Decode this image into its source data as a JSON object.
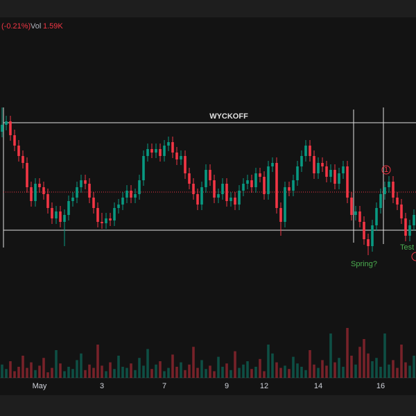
{
  "header": {
    "change": "(-0.21%)",
    "vol_label": "Vol",
    "vol_value": "1.59K"
  },
  "chart_data": {
    "type": "candlestick",
    "categories": [
      null,
      null,
      null,
      null,
      null,
      null,
      null,
      null,
      null,
      "May",
      null,
      null,
      null,
      null,
      null,
      null,
      null,
      null,
      null,
      null,
      null,
      null,
      null,
      null,
      "3",
      null,
      null,
      null,
      null,
      null,
      null,
      null,
      null,
      null,
      null,
      null,
      null,
      null,
      null,
      "7",
      null,
      null,
      null,
      null,
      null,
      null,
      null,
      null,
      null,
      null,
      null,
      null,
      null,
      null,
      "9",
      null,
      null,
      null,
      null,
      null,
      null,
      null,
      null,
      "12",
      null,
      null,
      null,
      null,
      null,
      null,
      null,
      null,
      null,
      null,
      null,
      null,
      "14",
      null,
      null,
      null,
      null,
      null,
      null,
      null,
      null,
      null,
      null,
      null,
      null,
      null,
      null,
      "16",
      null,
      null,
      null,
      null,
      null,
      null,
      null,
      null
    ],
    "open": [
      410,
      420,
      425,
      405,
      390,
      375,
      365,
      330,
      310,
      335,
      330,
      320,
      300,
      285,
      295,
      280,
      290,
      310,
      315,
      330,
      340,
      335,
      315,
      300,
      280,
      278,
      285,
      282,
      300,
      305,
      315,
      325,
      315,
      320,
      340,
      375,
      385,
      380,
      385,
      375,
      390,
      395,
      380,
      370,
      375,
      350,
      335,
      320,
      305,
      330,
      355,
      340,
      315,
      320,
      335,
      310,
      315,
      305,
      325,
      335,
      340,
      330,
      350,
      345,
      320,
      360,
      365,
      300,
      280,
      330,
      325,
      340,
      360,
      375,
      390,
      375,
      350,
      365,
      360,
      345,
      355,
      335,
      350,
      360,
      315,
      290,
      295,
      280,
      255,
      245,
      275,
      300,
      320,
      330,
      338,
      315,
      305,
      285,
      260,
      275
    ],
    "high": [
      445,
      433,
      433,
      413,
      398,
      383,
      373,
      338,
      343,
      343,
      338,
      328,
      308,
      303,
      303,
      298,
      318,
      323,
      338,
      348,
      348,
      343,
      323,
      308,
      293,
      293,
      293,
      308,
      313,
      323,
      333,
      333,
      328,
      348,
      383,
      393,
      393,
      393,
      393,
      398,
      403,
      403,
      388,
      383,
      383,
      358,
      343,
      328,
      338,
      363,
      363,
      348,
      328,
      343,
      343,
      323,
      323,
      333,
      343,
      348,
      348,
      358,
      358,
      353,
      368,
      373,
      373,
      308,
      338,
      338,
      348,
      368,
      383,
      398,
      398,
      383,
      373,
      373,
      368,
      363,
      363,
      358,
      368,
      368,
      323,
      303,
      303,
      288,
      263,
      283,
      308,
      328,
      338,
      346,
      346,
      323,
      313,
      293,
      283,
      298
    ],
    "low": [
      402,
      412,
      397,
      382,
      367,
      357,
      322,
      302,
      302,
      322,
      312,
      292,
      277,
      277,
      272,
      245,
      282,
      302,
      307,
      322,
      327,
      307,
      292,
      272,
      270,
      270,
      274,
      274,
      292,
      297,
      307,
      307,
      307,
      312,
      332,
      367,
      372,
      372,
      367,
      367,
      382,
      372,
      362,
      362,
      342,
      327,
      312,
      297,
      297,
      322,
      332,
      307,
      307,
      312,
      302,
      302,
      297,
      297,
      317,
      327,
      322,
      322,
      337,
      312,
      312,
      352,
      292,
      260,
      272,
      317,
      317,
      332,
      352,
      367,
      367,
      342,
      342,
      352,
      337,
      337,
      327,
      327,
      342,
      307,
      282,
      282,
      272,
      247,
      232,
      237,
      267,
      292,
      312,
      322,
      307,
      297,
      277,
      252,
      252,
      267
    ],
    "close": [
      420,
      425,
      405,
      390,
      375,
      365,
      330,
      310,
      335,
      330,
      320,
      300,
      285,
      295,
      280,
      290,
      310,
      315,
      330,
      340,
      335,
      315,
      300,
      280,
      278,
      285,
      282,
      300,
      305,
      315,
      325,
      315,
      320,
      340,
      375,
      385,
      380,
      385,
      375,
      390,
      395,
      380,
      370,
      375,
      350,
      335,
      320,
      305,
      330,
      355,
      340,
      315,
      320,
      335,
      310,
      315,
      305,
      325,
      335,
      340,
      330,
      350,
      345,
      320,
      360,
      365,
      300,
      280,
      330,
      325,
      340,
      360,
      375,
      390,
      375,
      350,
      365,
      360,
      345,
      355,
      335,
      350,
      360,
      315,
      290,
      295,
      280,
      255,
      245,
      275,
      300,
      320,
      330,
      338,
      315,
      305,
      285,
      260,
      275,
      290
    ],
    "volume": [
      12,
      8,
      15,
      6,
      10,
      20,
      9,
      14,
      7,
      11,
      18,
      5,
      9,
      25,
      13,
      6,
      10,
      8,
      16,
      22,
      7,
      12,
      9,
      30,
      11,
      6,
      14,
      8,
      20,
      10,
      9,
      13,
      7,
      18,
      11,
      26,
      8,
      12,
      15,
      6,
      9,
      21,
      10,
      14,
      7,
      12,
      28,
      9,
      16,
      8,
      11,
      6,
      19,
      10,
      13,
      7,
      24,
      9,
      12,
      15,
      8,
      10,
      17,
      6,
      30,
      22,
      14,
      9,
      11,
      8,
      19,
      13,
      10,
      7,
      25,
      12,
      9,
      16,
      11,
      40,
      14,
      18,
      10,
      45,
      20,
      12,
      28,
      35,
      22,
      15,
      18,
      10,
      40,
      12,
      16,
      9,
      30,
      14,
      11,
      20
    ],
    "ylim": [
      60,
      570
    ],
    "volume_lim": [
      0,
      50
    ],
    "up_color": "#089981",
    "down_color": "#f23645",
    "range": {
      "label": "WYCKOFF",
      "top": 423,
      "bottom": 268,
      "mid": 323
    },
    "annotations": [
      "Spring?",
      "Test",
      "1"
    ]
  }
}
